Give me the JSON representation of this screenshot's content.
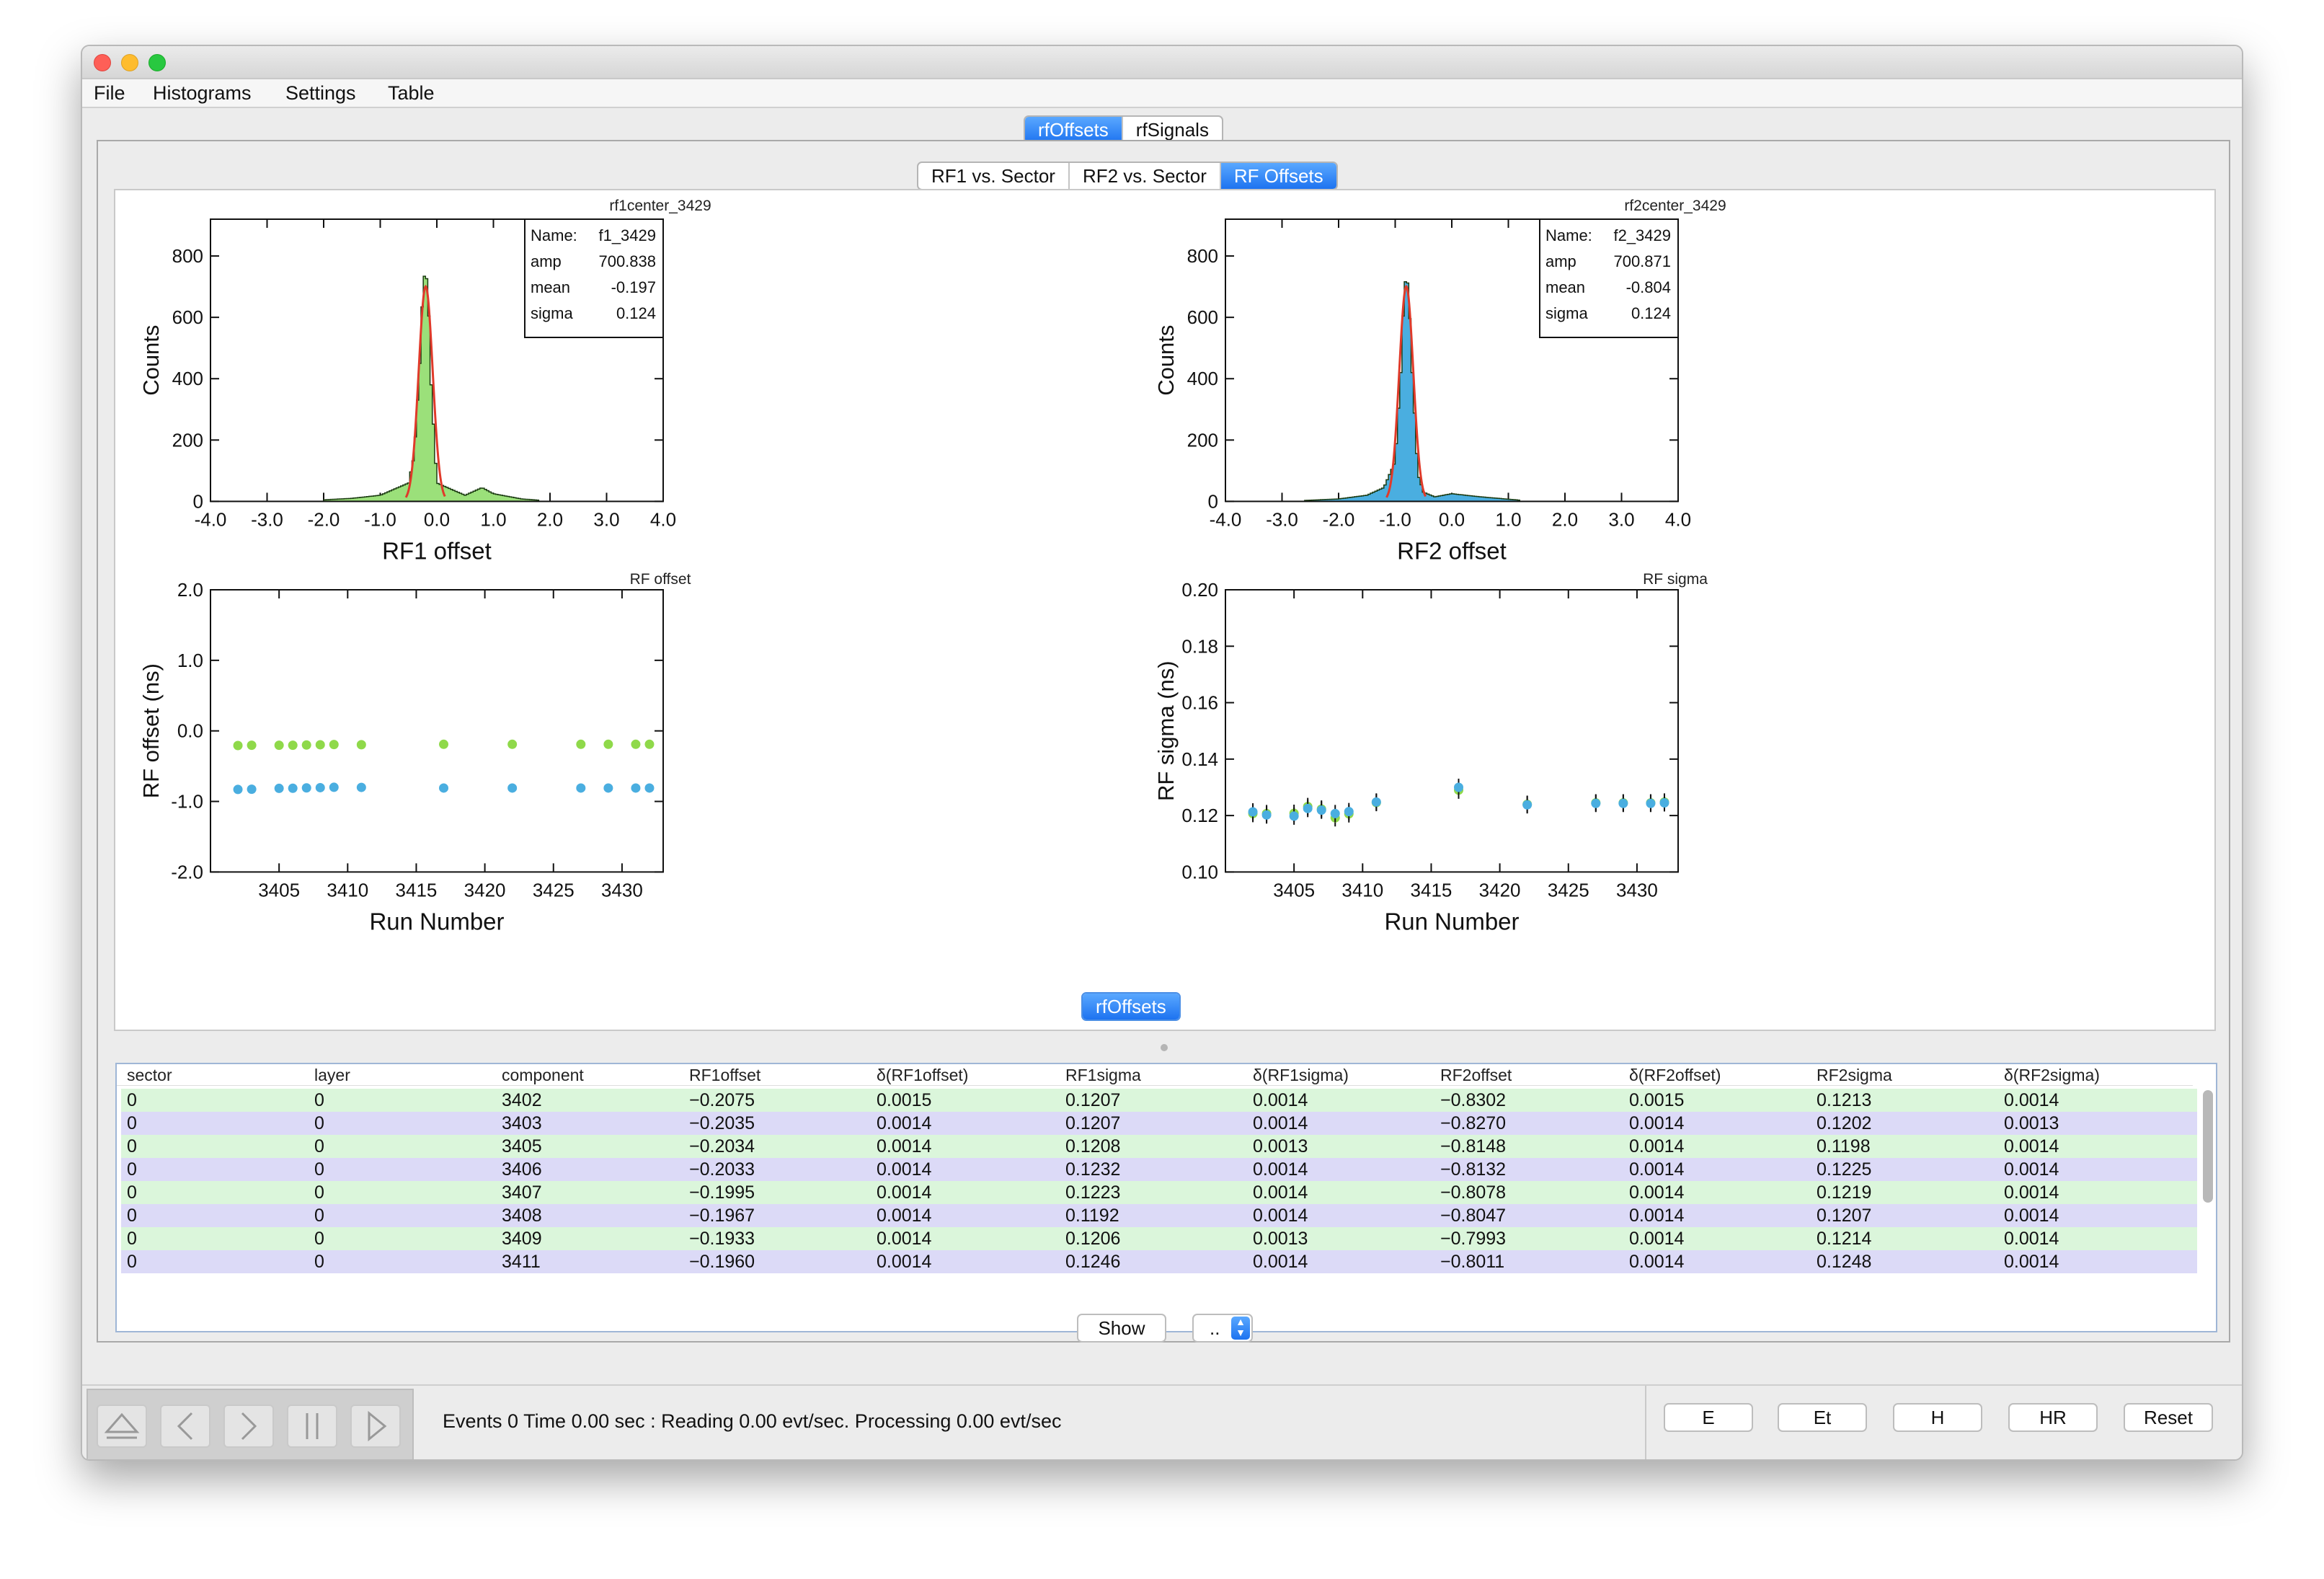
{
  "menu": [
    "File",
    "Histograms",
    "Settings",
    "Table"
  ],
  "top_tabs": [
    "rfOffsets",
    "rfSignals"
  ],
  "sub_tabs": [
    "RF1 vs. Sector",
    "RF2 vs. Sector",
    "RF Offsets"
  ],
  "plots": {
    "h1": {
      "title": "rf1center_3429",
      "ylabel": "Counts",
      "xlabel": "RF1 offset",
      "stats": [
        [
          "Name:",
          "f1_3429"
        ],
        [
          "amp",
          "700.838"
        ],
        [
          "mean",
          "-0.197"
        ],
        [
          "sigma",
          "0.124"
        ]
      ]
    },
    "h2": {
      "title": "rf2center_3429",
      "ylabel": "Counts",
      "xlabel": "RF2 offset",
      "stats": [
        [
          "Name:",
          "f2_3429"
        ],
        [
          "amp",
          "700.871"
        ],
        [
          "mean",
          "-0.804"
        ],
        [
          "sigma",
          "0.124"
        ]
      ]
    },
    "g1": {
      "title": "RF offset",
      "ylabel": "RF offset (ns)",
      "xlabel": "Run Number"
    },
    "g2": {
      "title": "RF sigma",
      "ylabel": "RF sigma (ns)",
      "xlabel": "Run Number"
    }
  },
  "chart_data": [
    {
      "type": "bar",
      "title": "rf1center_3429",
      "xlabel": "RF1 offset",
      "ylabel": "Counts",
      "xlim": [
        -4.0,
        4.0
      ],
      "ylim": [
        0,
        920
      ],
      "x_ticks": [
        "-4.0",
        "-3.0",
        "-2.0",
        "-1.0",
        "0.0",
        "1.0",
        "2.0",
        "3.0",
        "4.0"
      ],
      "y_ticks": [
        "0",
        "200",
        "400",
        "600",
        "800"
      ],
      "color": "#9be07a",
      "fit": {
        "amp": 700.838,
        "mean": -0.197,
        "sigma": 0.124
      },
      "approx_bins": {
        "x": [
          -2.0,
          -1.5,
          -1.0,
          -0.5,
          -0.4,
          -0.3,
          -0.25,
          -0.2,
          -0.15,
          -0.1,
          0.0,
          0.5,
          0.8,
          1.0,
          1.5,
          1.8
        ],
        "y": [
          5,
          10,
          20,
          60,
          150,
          450,
          680,
          770,
          660,
          380,
          60,
          20,
          45,
          25,
          8,
          4
        ]
      }
    },
    {
      "type": "bar",
      "title": "rf2center_3429",
      "xlabel": "RF2 offset",
      "ylabel": "Counts",
      "xlim": [
        -4.0,
        4.0
      ],
      "ylim": [
        0,
        920
      ],
      "x_ticks": [
        "-4.0",
        "-3.0",
        "-2.0",
        "-1.0",
        "0.0",
        "1.0",
        "2.0",
        "3.0",
        "4.0"
      ],
      "y_ticks": [
        "0",
        "200",
        "400",
        "600",
        "800"
      ],
      "color": "#4aaee0",
      "fit": {
        "amp": 700.871,
        "mean": -0.804,
        "sigma": 0.124
      },
      "approx_bins": {
        "x": [
          -2.6,
          -2.0,
          -1.5,
          -1.2,
          -1.0,
          -0.9,
          -0.85,
          -0.8,
          -0.75,
          -0.7,
          -0.6,
          -0.5,
          -0.3,
          0.0,
          0.5,
          1.2
        ],
        "y": [
          3,
          8,
          20,
          45,
          130,
          420,
          650,
          760,
          640,
          420,
          90,
          30,
          15,
          25,
          15,
          4
        ]
      }
    },
    {
      "type": "scatter",
      "title": "RF offset",
      "xlabel": "Run Number",
      "ylabel": "RF offset (ns)",
      "xlim": [
        3400,
        3433
      ],
      "ylim": [
        -2.0,
        2.0
      ],
      "x_ticks": [
        "3405",
        "3410",
        "3415",
        "3420",
        "3425",
        "3430"
      ],
      "y_ticks": [
        "-2.0",
        "-1.0",
        "0.0",
        "1.0",
        "2.0"
      ],
      "x": [
        3402,
        3403,
        3405,
        3406,
        3407,
        3408,
        3409,
        3411,
        3417,
        3422,
        3427,
        3429,
        3431,
        3432
      ],
      "series": [
        {
          "color": "#8fd94a",
          "values": [
            -0.2075,
            -0.2035,
            -0.2034,
            -0.2033,
            -0.1995,
            -0.1967,
            -0.1933,
            -0.196,
            -0.19,
            -0.19,
            -0.19,
            -0.19,
            -0.19,
            -0.19
          ]
        },
        {
          "color": "#4aaee0",
          "values": [
            -0.8302,
            -0.827,
            -0.8148,
            -0.8132,
            -0.8078,
            -0.8047,
            -0.7993,
            -0.8011,
            -0.81,
            -0.81,
            -0.81,
            -0.81,
            -0.81,
            -0.81
          ]
        }
      ]
    },
    {
      "type": "scatter",
      "title": "RF sigma",
      "xlabel": "Run Number",
      "ylabel": "RF sigma (ns)",
      "xlim": [
        3400,
        3433
      ],
      "ylim": [
        0.1,
        0.2
      ],
      "x_ticks": [
        "3405",
        "3410",
        "3415",
        "3420",
        "3425",
        "3430"
      ],
      "y_ticks": [
        "0.10",
        "0.12",
        "0.14",
        "0.16",
        "0.18",
        "0.20"
      ],
      "x": [
        3402,
        3403,
        3405,
        3406,
        3407,
        3408,
        3409,
        3411,
        3417,
        3422,
        3427,
        3429,
        3431,
        3432
      ],
      "series": [
        {
          "color": "#8fd94a",
          "values": [
            0.1207,
            0.1207,
            0.1208,
            0.1232,
            0.1223,
            0.1192,
            0.1206,
            0.1246,
            0.129,
            0.124,
            0.1245,
            0.1245,
            0.1245,
            0.1248
          ]
        },
        {
          "color": "#4aaee0",
          "values": [
            0.1213,
            0.1202,
            0.1198,
            0.1225,
            0.1219,
            0.1207,
            0.1214,
            0.1248,
            0.13,
            0.1238,
            0.1243,
            0.1243,
            0.1243,
            0.1245
          ]
        }
      ]
    }
  ],
  "table": {
    "label": "rfOffsets",
    "columns": [
      "sector",
      "layer",
      "component",
      "RF1offset",
      "δ(RF1offset)",
      "RF1sigma",
      "δ(RF1sigma)",
      "RF2offset",
      "δ(RF2offset)",
      "RF2sigma",
      "δ(RF2sigma)"
    ],
    "rows": [
      [
        "0",
        "0",
        "3402",
        "−0.2075",
        "0.0015",
        "0.1207",
        "0.0014",
        "−0.8302",
        "0.0015",
        "0.1213",
        "0.0014"
      ],
      [
        "0",
        "0",
        "3403",
        "−0.2035",
        "0.0014",
        "0.1207",
        "0.0014",
        "−0.8270",
        "0.0014",
        "0.1202",
        "0.0013"
      ],
      [
        "0",
        "0",
        "3405",
        "−0.2034",
        "0.0014",
        "0.1208",
        "0.0013",
        "−0.8148",
        "0.0014",
        "0.1198",
        "0.0014"
      ],
      [
        "0",
        "0",
        "3406",
        "−0.2033",
        "0.0014",
        "0.1232",
        "0.0014",
        "−0.8132",
        "0.0014",
        "0.1225",
        "0.0014"
      ],
      [
        "0",
        "0",
        "3407",
        "−0.1995",
        "0.0014",
        "0.1223",
        "0.0014",
        "−0.8078",
        "0.0014",
        "0.1219",
        "0.0014"
      ],
      [
        "0",
        "0",
        "3408",
        "−0.1967",
        "0.0014",
        "0.1192",
        "0.0014",
        "−0.8047",
        "0.0014",
        "0.1207",
        "0.0014"
      ],
      [
        "0",
        "0",
        "3409",
        "−0.1933",
        "0.0014",
        "0.1206",
        "0.0013",
        "−0.7993",
        "0.0014",
        "0.1214",
        "0.0014"
      ],
      [
        "0",
        "0",
        "3411",
        "−0.1960",
        "0.0014",
        "0.1246",
        "0.0014",
        "−0.8011",
        "0.0014",
        "0.1248",
        "0.0014"
      ]
    ]
  },
  "controls": {
    "show_label": "Show",
    "select_value": ".."
  },
  "status": "Events 0  Time 0.00 sec : Reading 0.00  evt/sec. Processing 0.00 evt/sec",
  "right_buttons": [
    "E",
    "Et",
    "H",
    "HR",
    "Reset"
  ]
}
